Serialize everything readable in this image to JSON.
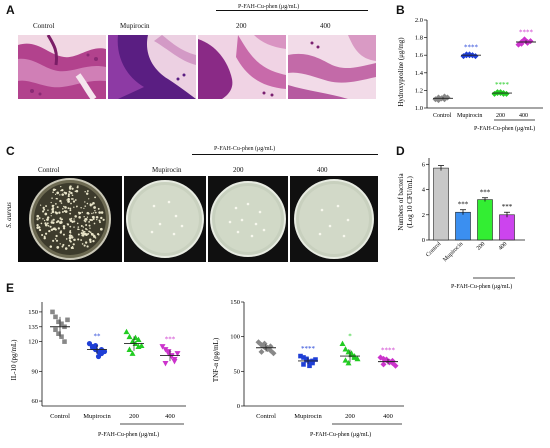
{
  "panels": {
    "A": {
      "letter": "A",
      "group_labels": [
        "Control",
        "Mupirocin",
        "200",
        "400"
      ],
      "treatment_label": "P-FAH-Cu-phen (μg/mL)"
    },
    "B": {
      "letter": "B",
      "xtick_labels": [
        "Control",
        "Mupirocin",
        "200",
        "400"
      ],
      "treatment_label": "P-FAH-Cu-phen (μg/mL)",
      "ylabel": "Hydroxyproline (μg/mg)",
      "yticks": [
        "1.0",
        "1.2",
        "1.4",
        "1.6",
        "1.8",
        "2.0"
      ],
      "significance": [
        "",
        "****",
        "****",
        "****"
      ]
    },
    "C": {
      "letter": "C",
      "group_labels": [
        "Control",
        "Mupirocin",
        "200",
        "400"
      ],
      "treatment_label": "P-FAH-Cu-phen (μg/mL)",
      "organism": "S. aureus"
    },
    "D": {
      "letter": "D",
      "xtick_labels": [
        "Control",
        "Mupirocin",
        "200",
        "400"
      ],
      "treatment_label": "P-FAH-Cu-phen (μg/mL)",
      "ylabel_line1": "Numbers of bacteria",
      "ylabel_line2": "(Log 10 CFU/mL)",
      "yticks": [
        "0",
        "2",
        "4",
        "6"
      ],
      "significance": [
        "",
        "***",
        "***",
        "***"
      ]
    },
    "E": {
      "letter": "E",
      "left_xtick_labels": [
        "Control",
        "Mupirocin",
        "200",
        "400"
      ],
      "right_xtick_labels": [
        "Control",
        "Mupirocin",
        "200",
        "400"
      ],
      "treatment_label": "P-FAH-Cu-phen (μg/mL)",
      "left_ylabel": "IL-10 (pg/mL)",
      "right_ylabel": "TNF-α (pg/mL)",
      "left_yticks": [
        "60",
        "90",
        "120",
        "135",
        "150"
      ],
      "right_yticks": [
        "0",
        "50",
        "100",
        "150"
      ],
      "left_significance": [
        "",
        "**",
        "",
        "***"
      ],
      "right_significance": [
        "",
        "****",
        "*",
        "****"
      ]
    }
  },
  "colors": {
    "control": "#888888",
    "mupirocin": "#1f3fd6",
    "dose200": "#22cc22",
    "dose400": "#cc33cc",
    "bar_control": "#c8c8c8",
    "bar_mupirocin": "#3b8ff0",
    "bar_200": "#33ee33",
    "bar_400": "#cc44ee",
    "histology_stain": "#c04a9c"
  },
  "chart_data": [
    {
      "panel": "B",
      "type": "scatter",
      "ylabel": "Hydroxyproline (μg/mg)",
      "categories": [
        "Control",
        "Mupirocin",
        "200",
        "400"
      ],
      "ylim": [
        1.0,
        2.0
      ],
      "means": [
        1.11,
        1.6,
        1.17,
        1.75
      ],
      "points": [
        [
          1.1,
          1.12,
          1.11,
          1.1,
          1.12,
          1.09,
          1.11,
          1.13
        ],
        [
          1.59,
          1.6,
          1.61,
          1.6,
          1.59,
          1.61,
          1.6,
          1.6
        ],
        [
          1.16,
          1.17,
          1.18,
          1.17,
          1.16,
          1.18,
          1.17,
          1.16
        ],
        [
          1.72,
          1.75,
          1.78,
          1.74,
          1.76,
          1.73,
          1.77,
          1.75
        ]
      ]
    },
    {
      "panel": "D",
      "type": "bar",
      "ylabel": "Numbers of bacteria (Log 10 CFU/mL)",
      "categories": [
        "Control",
        "Mupirocin",
        "200",
        "400"
      ],
      "ylim": [
        0,
        6
      ],
      "values": [
        5.7,
        2.2,
        3.2,
        2.0
      ],
      "errors": [
        0.2,
        0.2,
        0.15,
        0.2
      ]
    },
    {
      "panel": "E-left",
      "type": "scatter",
      "ylabel": "IL-10 (pg/mL)",
      "categories": [
        "Control",
        "Mupirocin",
        "200",
        "400"
      ],
      "ylim": [
        60,
        150
      ],
      "means": [
        135,
        112,
        118,
        106
      ],
      "points": [
        [
          150,
          145,
          140,
          138,
          135,
          132,
          128,
          125,
          120,
          142
        ],
        [
          118,
          115,
          112,
          110,
          108,
          114,
          116,
          105,
          112,
          110
        ],
        [
          130,
          125,
          120,
          118,
          115,
          112,
          108,
          124,
          122,
          116
        ],
        [
          115,
          112,
          108,
          105,
          100,
          98,
          110,
          106,
          102,
          108
        ]
      ]
    },
    {
      "panel": "E-right",
      "type": "scatter",
      "ylabel": "TNF-α (pg/mL)",
      "categories": [
        "Control",
        "Mupirocin",
        "200",
        "400"
      ],
      "ylim": [
        0,
        150
      ],
      "means": [
        84,
        65,
        72,
        64
      ],
      "points": [
        [
          92,
          88,
          85,
          82,
          80,
          78,
          90,
          84,
          86,
          76
        ],
        [
          72,
          70,
          66,
          64,
          62,
          60,
          68,
          58,
          65,
          67
        ],
        [
          90,
          82,
          78,
          74,
          70,
          66,
          62,
          76,
          72,
          68
        ],
        [
          70,
          68,
          66,
          64,
          62,
          60,
          67,
          63,
          65,
          58
        ]
      ]
    }
  ]
}
